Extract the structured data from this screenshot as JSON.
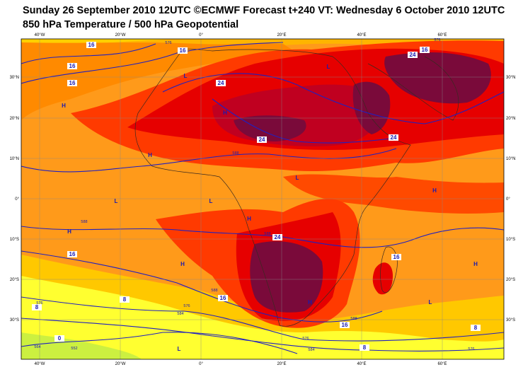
{
  "header": {
    "title": "Sunday 26 September 2010 12UTC ©ECMWF Forecast t+240 VT: Wednesday 6 October 2010 12UTC",
    "subtitle": "850 hPa Temperature / 500 hPa Geopotential"
  },
  "axes": {
    "longitudes": [
      "40°W",
      "20°W",
      "0°",
      "20°E",
      "40°E",
      "60°E"
    ],
    "latitudes": [
      "30°N",
      "20°N",
      "10°N",
      "0°",
      "10°S",
      "20°S",
      "30°S"
    ]
  },
  "map": {
    "pressure_centres": [
      "H",
      "L",
      "H",
      "L",
      "H",
      "H",
      "L",
      "L",
      "L",
      "H",
      "H",
      "H",
      "H",
      "L",
      "L",
      "H"
    ],
    "temperature_labels": [
      16,
      16,
      16,
      16,
      24,
      24,
      16,
      24,
      24,
      24,
      16,
      16,
      16,
      16,
      8,
      8,
      8,
      8,
      0
    ],
    "geopotential_labels": [
      576,
      576,
      588,
      588,
      588,
      588,
      588,
      576,
      576,
      576,
      584,
      576,
      584,
      552,
      564
    ]
  }
}
